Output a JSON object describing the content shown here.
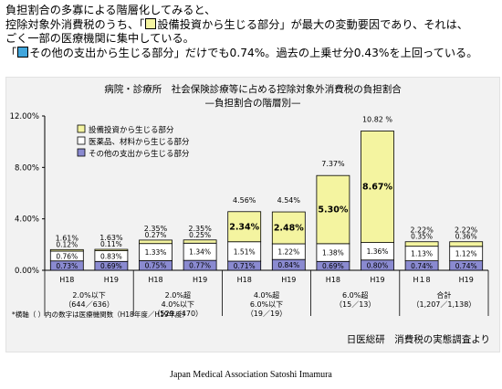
{
  "intro": {
    "line1": "負担割合の多寡による階層化してみると、",
    "line2a": "控除対象外消費税のうち、「",
    "line2b": "設備投資から生じる部分」が最大の変動要因であり、それは、",
    "line3": "ごく一部の医療機関に集中している。",
    "line4a": "「",
    "line4b": "その他の支出から生じる部分」だけでも0.74%。過去の上乗せ分0.43%を上回っている。"
  },
  "colors": {
    "yellow": "#f4f4a0",
    "white": "#ffffff",
    "purple": "#8a8ad0",
    "blue_marker": "#41a6dc",
    "axis": "#000000"
  },
  "chart_data": {
    "type": "bar",
    "stacked": true,
    "title": "病院・診療所　社会保険診療等に占める控除対象外消費税の負担割合",
    "subtitle": "—負担割合の階層別—",
    "yticks": [
      "0.00%",
      "4.00%",
      "8.00%",
      "12.00%"
    ],
    "ylim": [
      0,
      12
    ],
    "categories": [
      "H18",
      "H19",
      "H18",
      "H19",
      "H18",
      "H19",
      "H18",
      "H19",
      "H１8",
      "H19"
    ],
    "groups": [
      {
        "label": "2.0%以下",
        "count": "（644／636）"
      },
      {
        "label": "2.0%超\n4.0%以下",
        "count": "（529／470）"
      },
      {
        "label": "4.0%超\n6.0%以下",
        "count": "（19／19）"
      },
      {
        "label": "6.0%超",
        "count": "（15／13）"
      },
      {
        "label": "合計",
        "count": "（1,207／1,138）"
      }
    ],
    "series": [
      {
        "name": "その他の支出から生じる部分",
        "values": [
          0.73,
          0.69,
          0.75,
          0.77,
          0.71,
          0.84,
          0.69,
          0.8,
          0.74,
          0.74
        ],
        "labels": [
          "0.73%",
          "0.69%",
          "0.75%",
          "0.77%",
          "0.71%",
          "0.84%",
          "0.69%",
          "0.80%",
          "0.74%",
          "0.74%"
        ]
      },
      {
        "name": "医薬品、材料から生じる部分",
        "values": [
          0.76,
          0.83,
          1.33,
          1.34,
          1.51,
          1.22,
          1.38,
          1.36,
          1.13,
          1.12
        ],
        "labels": [
          "0.76%",
          "0.83%",
          "1.33%",
          "1.34%",
          "1.51%",
          "1.22%",
          "1.38%",
          "1.36%",
          "1.13%",
          "1.12%"
        ]
      },
      {
        "name": "設備投資から生じる部分",
        "values": [
          0.12,
          0.11,
          0.27,
          0.25,
          2.34,
          2.48,
          5.3,
          8.67,
          0.35,
          0.36
        ],
        "labels": [
          "0.12%",
          "0.11%",
          "0.27%",
          "0.25%",
          "2.34%",
          "2.48%",
          "5.30%",
          "8.67%",
          "0.35%",
          "0.36%"
        ]
      }
    ],
    "totals": [
      "1.61%",
      "1.63%",
      "2.35%",
      "2.35%",
      "4.56%",
      "4.54%",
      "7.37%",
      "10.82 %",
      "2.22%",
      "2.22%"
    ],
    "legend_position": "top-left",
    "footnote": "*横軸（ ）内の数字は医療機関数（H18年度／H19年度）",
    "source": "日医総研　消費税の実態調査より"
  },
  "footer": "Japan Medical Association   Satoshi Imamura"
}
